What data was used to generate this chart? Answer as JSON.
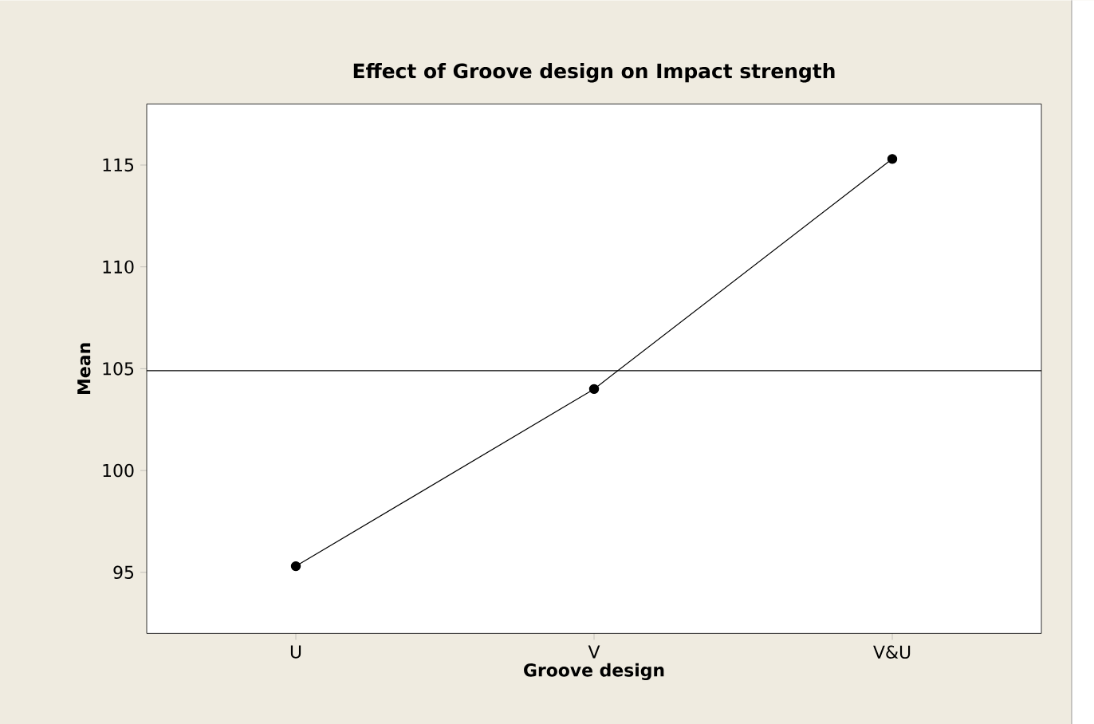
{
  "chart_data": {
    "type": "line",
    "title": "Effect of Groove design on Impact strength",
    "xlabel": "Groove design",
    "ylabel": "Mean",
    "categories": [
      "U",
      "V",
      "V&U"
    ],
    "series": [
      {
        "color": "#000000",
        "values": [
          95.3,
          104.0,
          115.3
        ]
      }
    ],
    "ylim": [
      92,
      118
    ],
    "yticks": [
      95,
      100,
      105,
      110,
      115
    ],
    "grid": false,
    "marker": "circle",
    "line_style": "solid",
    "ref_lines": [
      {
        "axis": "y",
        "value": 104.9,
        "color": "#000000"
      }
    ]
  }
}
